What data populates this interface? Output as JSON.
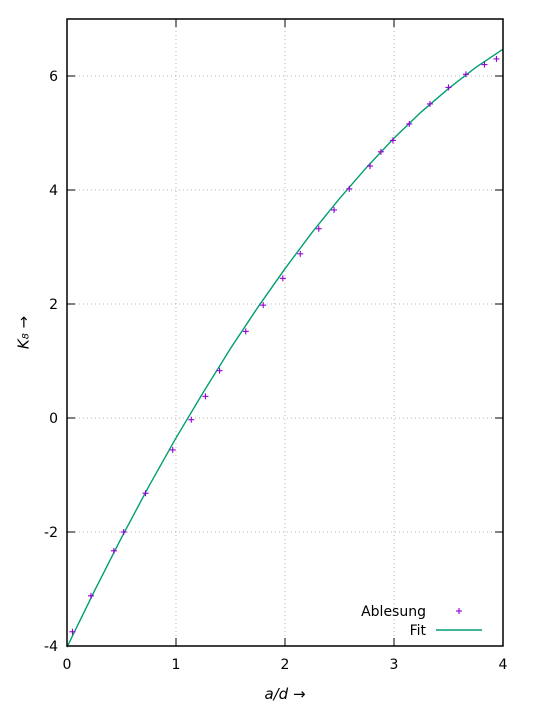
{
  "chart_data": {
    "type": "scatter",
    "xlabel": "a/d →",
    "ylabel": "K₈ →",
    "xlim": [
      0,
      4
    ],
    "ylim": [
      -4,
      7
    ],
    "xticks": [
      0,
      1,
      2,
      3,
      4
    ],
    "yticks": [
      -4,
      -2,
      0,
      2,
      4,
      6
    ],
    "grid": true,
    "legend_position": "bottom-right",
    "series": [
      {
        "name": "Ablesung",
        "kind": "points",
        "marker": "+",
        "color": "#9400d3",
        "x": [
          0.05,
          0.22,
          0.43,
          0.52,
          0.72,
          0.97,
          1.14,
          1.27,
          1.4,
          1.64,
          1.8,
          1.98,
          2.14,
          2.31,
          2.45,
          2.59,
          2.78,
          2.88,
          2.99,
          3.14,
          3.33,
          3.5,
          3.66,
          3.83,
          3.94
        ],
        "y": [
          -3.75,
          -3.12,
          -2.33,
          -2.0,
          -1.32,
          -0.56,
          -0.03,
          0.38,
          0.83,
          1.52,
          1.98,
          2.45,
          2.88,
          3.32,
          3.65,
          4.02,
          4.42,
          4.67,
          4.87,
          5.16,
          5.51,
          5.8,
          6.03,
          6.2,
          6.3
        ]
      },
      {
        "name": "Fit",
        "kind": "line",
        "color": "#009e73",
        "x": [
          0,
          0.25,
          0.5,
          0.75,
          1.0,
          1.25,
          1.5,
          1.75,
          2.0,
          2.25,
          2.5,
          2.75,
          3.0,
          3.25,
          3.5,
          3.75,
          4.0
        ],
        "y": [
          -4.02,
          -3.04,
          -2.1,
          -1.2,
          -0.35,
          0.45,
          1.22,
          1.94,
          2.62,
          3.26,
          3.85,
          4.4,
          4.91,
          5.37,
          5.78,
          6.15,
          6.47
        ]
      }
    ]
  }
}
